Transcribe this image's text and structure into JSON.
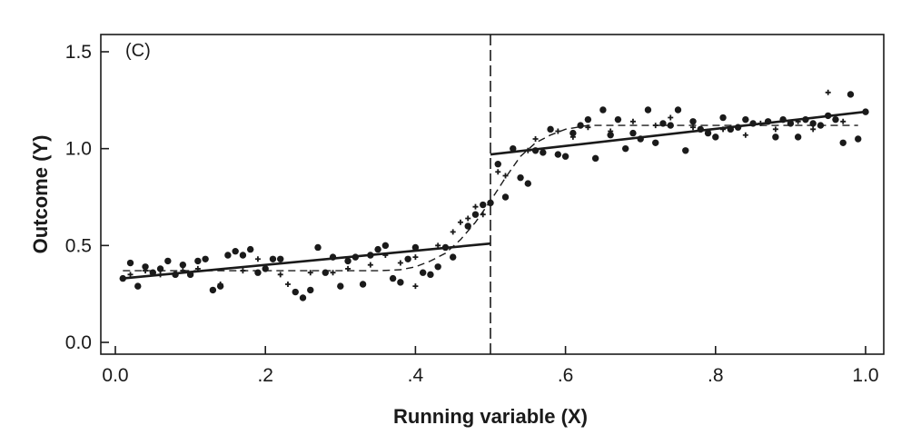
{
  "chart_data": {
    "type": "scatter",
    "panel_label": "(C)",
    "xlabel": "Running variable (X)",
    "ylabel": "Outcome (Y)",
    "xlim": [
      0.0,
      1.0
    ],
    "ylim": [
      0.0,
      1.5
    ],
    "x_ticks": [
      {
        "value": 0.0,
        "label": "0.0"
      },
      {
        "value": 0.2,
        "label": ".2"
      },
      {
        "value": 0.4,
        "label": ".4"
      },
      {
        "value": 0.6,
        "label": ".6"
      },
      {
        "value": 0.8,
        "label": ".8"
      },
      {
        "value": 1.0,
        "label": "1.0"
      }
    ],
    "y_ticks": [
      {
        "value": 0.0,
        "label": "0.0"
      },
      {
        "value": 0.5,
        "label": "0.5"
      },
      {
        "value": 1.0,
        "label": "1.0"
      },
      {
        "value": 1.5,
        "label": "1.5"
      }
    ],
    "cutoff": 0.5,
    "grid": false,
    "series": [
      {
        "marker": "dot",
        "points": [
          [
            0.01,
            0.33
          ],
          [
            0.02,
            0.41
          ],
          [
            0.03,
            0.29
          ],
          [
            0.04,
            0.39
          ],
          [
            0.05,
            0.36
          ],
          [
            0.06,
            0.38
          ],
          [
            0.07,
            0.42
          ],
          [
            0.08,
            0.35
          ],
          [
            0.09,
            0.4
          ],
          [
            0.1,
            0.35
          ],
          [
            0.11,
            0.42
          ],
          [
            0.12,
            0.43
          ],
          [
            0.13,
            0.27
          ],
          [
            0.14,
            0.29
          ],
          [
            0.15,
            0.45
          ],
          [
            0.16,
            0.47
          ],
          [
            0.17,
            0.45
          ],
          [
            0.18,
            0.48
          ],
          [
            0.19,
            0.36
          ],
          [
            0.2,
            0.38
          ],
          [
            0.21,
            0.43
          ],
          [
            0.22,
            0.43
          ],
          [
            0.24,
            0.26
          ],
          [
            0.25,
            0.23
          ],
          [
            0.26,
            0.27
          ],
          [
            0.27,
            0.49
          ],
          [
            0.28,
            0.36
          ],
          [
            0.29,
            0.44
          ],
          [
            0.3,
            0.29
          ],
          [
            0.31,
            0.42
          ],
          [
            0.32,
            0.44
          ],
          [
            0.33,
            0.3
          ],
          [
            0.34,
            0.45
          ],
          [
            0.35,
            0.48
          ],
          [
            0.36,
            0.5
          ],
          [
            0.37,
            0.33
          ],
          [
            0.38,
            0.31
          ],
          [
            0.39,
            0.43
          ],
          [
            0.4,
            0.49
          ],
          [
            0.41,
            0.36
          ],
          [
            0.42,
            0.35
          ],
          [
            0.43,
            0.39
          ],
          [
            0.44,
            0.49
          ],
          [
            0.45,
            0.44
          ],
          [
            0.47,
            0.6
          ],
          [
            0.48,
            0.66
          ],
          [
            0.49,
            0.71
          ],
          [
            0.5,
            0.72
          ],
          [
            0.51,
            0.92
          ],
          [
            0.52,
            0.75
          ],
          [
            0.53,
            1.0
          ],
          [
            0.54,
            0.85
          ],
          [
            0.55,
            0.82
          ],
          [
            0.56,
            0.99
          ],
          [
            0.57,
            0.98
          ],
          [
            0.58,
            1.1
          ],
          [
            0.59,
            0.97
          ],
          [
            0.6,
            0.96
          ],
          [
            0.61,
            1.08
          ],
          [
            0.62,
            1.12
          ],
          [
            0.63,
            1.15
          ],
          [
            0.64,
            0.95
          ],
          [
            0.65,
            1.2
          ],
          [
            0.66,
            1.07
          ],
          [
            0.67,
            1.15
          ],
          [
            0.68,
            1.0
          ],
          [
            0.69,
            1.08
          ],
          [
            0.7,
            1.05
          ],
          [
            0.71,
            1.2
          ],
          [
            0.72,
            1.03
          ],
          [
            0.73,
            1.13
          ],
          [
            0.74,
            1.12
          ],
          [
            0.75,
            1.2
          ],
          [
            0.76,
            0.99
          ],
          [
            0.77,
            1.14
          ],
          [
            0.78,
            1.1
          ],
          [
            0.79,
            1.08
          ],
          [
            0.8,
            1.06
          ],
          [
            0.81,
            1.16
          ],
          [
            0.82,
            1.1
          ],
          [
            0.83,
            1.11
          ],
          [
            0.84,
            1.15
          ],
          [
            0.85,
            1.13
          ],
          [
            0.87,
            1.14
          ],
          [
            0.88,
            1.06
          ],
          [
            0.89,
            1.15
          ],
          [
            0.9,
            1.13
          ],
          [
            0.91,
            1.06
          ],
          [
            0.92,
            1.15
          ],
          [
            0.93,
            1.13
          ],
          [
            0.94,
            1.12
          ],
          [
            0.95,
            1.17
          ],
          [
            0.96,
            1.15
          ],
          [
            0.97,
            1.03
          ],
          [
            0.98,
            1.28
          ],
          [
            0.99,
            1.05
          ],
          [
            1.0,
            1.19
          ]
        ]
      },
      {
        "marker": "plus",
        "points": [
          [
            0.02,
            0.35
          ],
          [
            0.04,
            0.37
          ],
          [
            0.06,
            0.35
          ],
          [
            0.09,
            0.37
          ],
          [
            0.11,
            0.38
          ],
          [
            0.14,
            0.3
          ],
          [
            0.17,
            0.37
          ],
          [
            0.19,
            0.43
          ],
          [
            0.22,
            0.35
          ],
          [
            0.23,
            0.3
          ],
          [
            0.26,
            0.36
          ],
          [
            0.29,
            0.36
          ],
          [
            0.31,
            0.38
          ],
          [
            0.34,
            0.4
          ],
          [
            0.36,
            0.45
          ],
          [
            0.38,
            0.41
          ],
          [
            0.4,
            0.44
          ],
          [
            0.4,
            0.29
          ],
          [
            0.43,
            0.5
          ],
          [
            0.45,
            0.57
          ],
          [
            0.46,
            0.62
          ],
          [
            0.47,
            0.64
          ],
          [
            0.48,
            0.7
          ],
          [
            0.49,
            0.66
          ],
          [
            0.51,
            0.88
          ],
          [
            0.52,
            0.86
          ],
          [
            0.55,
            0.99
          ],
          [
            0.56,
            1.05
          ],
          [
            0.59,
            1.09
          ],
          [
            0.61,
            1.06
          ],
          [
            0.63,
            1.11
          ],
          [
            0.66,
            1.09
          ],
          [
            0.69,
            1.14
          ],
          [
            0.72,
            1.12
          ],
          [
            0.74,
            1.16
          ],
          [
            0.77,
            1.11
          ],
          [
            0.79,
            1.09
          ],
          [
            0.81,
            1.1
          ],
          [
            0.84,
            1.07
          ],
          [
            0.86,
            1.13
          ],
          [
            0.88,
            1.1
          ],
          [
            0.91,
            1.14
          ],
          [
            0.93,
            1.1
          ],
          [
            0.95,
            1.29
          ],
          [
            0.97,
            1.14
          ]
        ]
      }
    ],
    "fit_lines": [
      {
        "style": "solid",
        "points": [
          [
            0.01,
            0.33
          ],
          [
            0.5,
            0.51
          ]
        ]
      },
      {
        "style": "solid",
        "points": [
          [
            0.5,
            0.97
          ],
          [
            1.0,
            1.19
          ]
        ]
      },
      {
        "style": "dashed",
        "points": [
          [
            0.01,
            0.37
          ],
          [
            0.05,
            0.37
          ],
          [
            0.1,
            0.37
          ],
          [
            0.15,
            0.37
          ],
          [
            0.2,
            0.37
          ],
          [
            0.25,
            0.37
          ],
          [
            0.3,
            0.37
          ],
          [
            0.35,
            0.37
          ],
          [
            0.38,
            0.375
          ],
          [
            0.4,
            0.39
          ],
          [
            0.42,
            0.42
          ],
          [
            0.44,
            0.46
          ],
          [
            0.46,
            0.53
          ],
          [
            0.48,
            0.62
          ],
          [
            0.5,
            0.73
          ],
          [
            0.52,
            0.85
          ],
          [
            0.54,
            0.96
          ],
          [
            0.56,
            1.03
          ],
          [
            0.58,
            1.07
          ],
          [
            0.6,
            1.1
          ],
          [
            0.63,
            1.12
          ],
          [
            0.66,
            1.12
          ],
          [
            0.7,
            1.12
          ],
          [
            0.75,
            1.12
          ],
          [
            0.8,
            1.12
          ],
          [
            0.85,
            1.12
          ],
          [
            0.9,
            1.12
          ],
          [
            0.95,
            1.12
          ],
          [
            0.99,
            1.12
          ]
        ]
      }
    ]
  }
}
